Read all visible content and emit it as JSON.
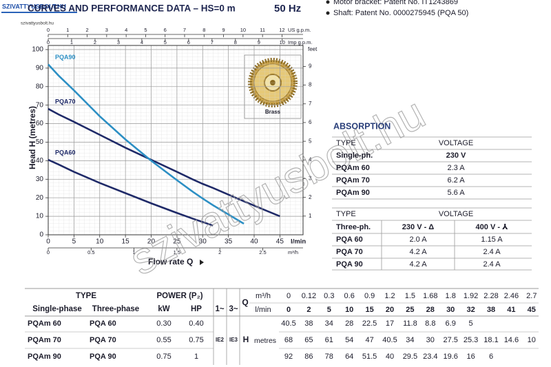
{
  "logo": {
    "brand": "SZIVATTYUSBOLT.HU",
    "url": "szivattyusbolt.hu"
  },
  "header": {
    "title": "CURVES AND PERFORMANCE DATA – HS=0 m",
    "frequency": "50 Hz"
  },
  "notes": [
    "Motor bracket: Patent No. IT1243869",
    "Shaft: Patent No. 0000275945 (PQA 50)"
  ],
  "watermark": "szivattyusbolt.hu",
  "chart_data": {
    "type": "line",
    "x_label": "Flow rate Q",
    "x_unit": "l/min",
    "y_label": "Head H (metres)",
    "x": [
      0,
      2,
      5,
      10,
      15,
      20,
      25,
      28,
      30,
      32,
      38,
      41,
      45
    ],
    "xlim": [
      0,
      49.5
    ],
    "xticks": [
      0,
      5,
      10,
      15,
      20,
      25,
      30,
      35,
      40,
      45
    ],
    "ylim": [
      0,
      100
    ],
    "yticks": [
      0,
      10,
      20,
      30,
      40,
      50,
      60,
      70,
      80,
      90,
      100
    ],
    "y2_label": "feet",
    "y2lim": [
      0,
      9.9
    ],
    "y2ticks": [
      1,
      2,
      3,
      4,
      5,
      6,
      7,
      8,
      9
    ],
    "us_gpm": {
      "label": "US g.p.m.",
      "lim": [
        0,
        13.08
      ],
      "ticks": [
        0,
        1,
        2,
        3,
        4,
        5,
        6,
        7,
        8,
        9,
        10,
        11,
        12
      ]
    },
    "imp_gpm": {
      "label": "Imp g.p.m.",
      "lim": [
        0,
        10.89
      ],
      "ticks": [
        0,
        1,
        2,
        3,
        4,
        5,
        6,
        7,
        8,
        9,
        10
      ]
    },
    "m3h": {
      "label": "m³/h",
      "lim": [
        0,
        2.97
      ],
      "ticks": [
        0,
        0.5,
        1,
        1.5,
        2,
        2.5
      ]
    },
    "grid": true,
    "inset_label": "Brass",
    "series": [
      {
        "name": "PQA60",
        "color": "#1f2a68",
        "values": [
          40.5,
          38,
          34,
          28,
          22.5,
          17,
          11.8,
          8.8,
          6.9,
          5,
          null,
          null,
          null
        ]
      },
      {
        "name": "PQA70",
        "color": "#1f2a68",
        "values": [
          68,
          65,
          61,
          54,
          47,
          40.5,
          34,
          30,
          27.5,
          25.3,
          18.1,
          14.6,
          10
        ]
      },
      {
        "name": "PQA90",
        "color": "#2c8fc4",
        "values": [
          92,
          86,
          78,
          64,
          51.5,
          40,
          29.5,
          23.4,
          19.6,
          16,
          6,
          null,
          null
        ]
      }
    ]
  },
  "absorption": {
    "title": "ABSORPTION",
    "single": {
      "header": [
        "TYPE",
        "VOLTAGE"
      ],
      "phase": "Single-ph.",
      "voltage": "230 V",
      "rows": [
        [
          "PQAm 60",
          "2.3 A"
        ],
        [
          "PQAm 70",
          "6.2 A"
        ],
        [
          "PQAm 90",
          "5.6 A"
        ]
      ]
    },
    "three": {
      "header": [
        "TYPE",
        "VOLTAGE"
      ],
      "phase": "Three-ph.",
      "voltages": [
        "230 V - Δ",
        "400 V - ⅄"
      ],
      "rows": [
        [
          "PQA 60",
          "2.0 A",
          "1.15 A"
        ],
        [
          "PQA 70",
          "4.2 A",
          "2.4 A"
        ],
        [
          "PQA 90",
          "4.2 A",
          "2.4 A"
        ]
      ]
    }
  },
  "performance_table": {
    "type_header": "TYPE",
    "power_header": "POWER (P₂)",
    "columns": [
      "Single-phase",
      "Three-phase",
      "kW",
      "HP",
      "1~",
      "3~"
    ],
    "q_label": "Q",
    "q_units": [
      "m³/h",
      "l/min"
    ],
    "m3h": [
      0,
      0.12,
      0.3,
      0.6,
      0.9,
      1.2,
      1.5,
      1.68,
      1.8,
      1.92,
      2.28,
      2.46,
      2.7
    ],
    "h_label": "H",
    "h_unit": "metres",
    "efficiency": [
      "IE2",
      "IE3"
    ],
    "rows": [
      {
        "single": "PQAm 60",
        "three": "PQA 60",
        "kw": "0.30",
        "hp": "0.40"
      },
      {
        "single": "PQAm 70",
        "three": "PQA 70",
        "kw": "0.55",
        "hp": "0.75"
      },
      {
        "single": "PQAm 90",
        "three": "PQA 90",
        "kw": "0.75",
        "hp": "1"
      }
    ]
  }
}
